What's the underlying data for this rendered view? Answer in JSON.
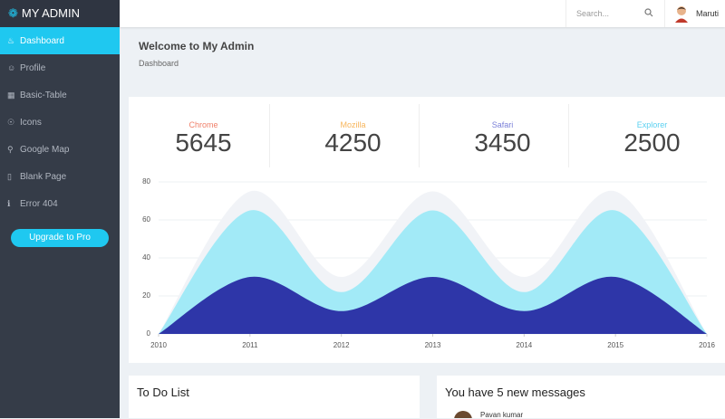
{
  "brand": "MY ADMIN",
  "search": {
    "placeholder": "Search..."
  },
  "user": {
    "name": "Maruti"
  },
  "sidebar": {
    "items": [
      "Dashboard",
      "Profile",
      "Basic-Table",
      "Icons",
      "Google Map",
      "Blank Page",
      "Error 404"
    ],
    "button": "Upgrade to Pro"
  },
  "breadcrumb": {
    "title": "Welcome to My Admin",
    "subtitle": "Dashboard"
  },
  "stats": [
    {
      "label": "Chrome",
      "value": "5645",
      "color": "#f0806a"
    },
    {
      "label": "Mozilla",
      "value": "4250",
      "color": "#f7b55a"
    },
    {
      "label": "Safari",
      "value": "3450",
      "color": "#7b80d8"
    },
    {
      "label": "Explorer",
      "value": "2500",
      "color": "#5ad0f0"
    }
  ],
  "chart_data": {
    "type": "area",
    "x": [
      2010,
      2011,
      2012,
      2013,
      2014,
      2015,
      2016
    ],
    "series": [
      {
        "color": "#f1f3f7",
        "values": [
          0,
          75,
          30,
          75,
          30,
          75,
          0
        ]
      },
      {
        "color": "#a2eaf7",
        "values": [
          0,
          65,
          22,
          65,
          22,
          65,
          0
        ]
      },
      {
        "color": "#2e36a8",
        "values": [
          0,
          30,
          12,
          30,
          12,
          30,
          0
        ]
      }
    ],
    "xlim": [
      2010,
      2016
    ],
    "xticks": [
      2010,
      2011,
      2012,
      2013,
      2014,
      2015,
      2016
    ],
    "ylim": [
      0,
      80
    ],
    "yticks": [
      0,
      20,
      40,
      60,
      80
    ],
    "grid": true
  },
  "cards": [
    {
      "title": "To Do List"
    },
    {
      "title": "You have 5 new messages",
      "first_sender": "Pavan kumar"
    }
  ]
}
